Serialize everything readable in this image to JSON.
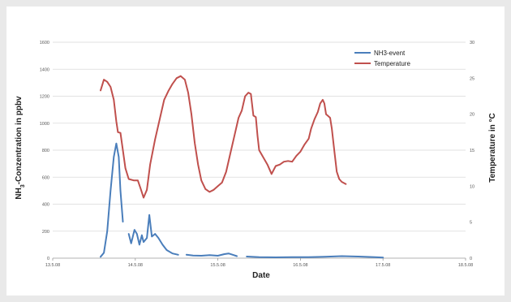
{
  "chart_data": {
    "type": "line",
    "xlabel": "Date",
    "ylabel_left": {
      "pre": "NH",
      "sub": "3",
      "post": "-Conzentration in ppbv"
    },
    "ylabel_right": "Temperature in °C",
    "x_ticks": [
      "13.5.08",
      "14.5.08",
      "15.5.08",
      "16.5.08",
      "17.5.08",
      "18.5.08"
    ],
    "x_range": [
      0,
      5
    ],
    "ylim_left": [
      0,
      1600
    ],
    "ylim_right": [
      0,
      30
    ],
    "y_ticks_left": [
      0,
      200,
      400,
      600,
      800,
      1000,
      1200,
      1400,
      1600
    ],
    "y_ticks_right": [
      0,
      5,
      10,
      15,
      20,
      25,
      30
    ],
    "grid": "horizontal",
    "legend_position": "top-right",
    "series": [
      {
        "name": "NH3-event",
        "axis": "left",
        "color": "#4a7ebb",
        "segments": [
          [
            [
              0.58,
              10
            ],
            [
              0.62,
              40
            ],
            [
              0.66,
              200
            ],
            [
              0.7,
              500
            ],
            [
              0.74,
              750
            ],
            [
              0.77,
              850
            ],
            [
              0.8,
              750
            ],
            [
              0.82,
              500
            ],
            [
              0.85,
              270
            ]
          ],
          [
            [
              0.92,
              180
            ],
            [
              0.95,
              110
            ],
            [
              0.99,
              210
            ],
            [
              1.02,
              180
            ],
            [
              1.05,
              100
            ],
            [
              1.08,
              170
            ],
            [
              1.1,
              120
            ],
            [
              1.14,
              150
            ],
            [
              1.17,
              320
            ],
            [
              1.2,
              160
            ],
            [
              1.24,
              180
            ],
            [
              1.28,
              150
            ],
            [
              1.33,
              100
            ],
            [
              1.38,
              60
            ],
            [
              1.45,
              35
            ],
            [
              1.52,
              25
            ]
          ],
          [
            [
              1.62,
              25
            ],
            [
              1.7,
              20
            ],
            [
              1.8,
              18
            ],
            [
              1.9,
              22
            ],
            [
              2.0,
              18
            ],
            [
              2.08,
              30
            ],
            [
              2.13,
              35
            ],
            [
              2.18,
              25
            ],
            [
              2.23,
              15
            ]
          ],
          [
            [
              2.35,
              12
            ],
            [
              2.5,
              8
            ],
            [
              2.7,
              6
            ],
            [
              2.9,
              8
            ],
            [
              3.1,
              8
            ],
            [
              3.3,
              10
            ],
            [
              3.5,
              15
            ],
            [
              3.7,
              12
            ],
            [
              3.9,
              8
            ],
            [
              4.0,
              5
            ]
          ]
        ]
      },
      {
        "name": "Temperature",
        "axis": "right",
        "color": "#c0504d",
        "points": [
          [
            0.58,
            23.3
          ],
          [
            0.62,
            24.8
          ],
          [
            0.66,
            24.5
          ],
          [
            0.7,
            23.8
          ],
          [
            0.74,
            22.0
          ],
          [
            0.77,
            19.0
          ],
          [
            0.79,
            17.5
          ],
          [
            0.82,
            17.4
          ],
          [
            0.85,
            15.0
          ],
          [
            0.88,
            12.5
          ],
          [
            0.92,
            11.0
          ],
          [
            0.98,
            10.8
          ],
          [
            1.03,
            10.8
          ],
          [
            1.07,
            9.5
          ],
          [
            1.1,
            8.4
          ],
          [
            1.14,
            9.5
          ],
          [
            1.18,
            13.0
          ],
          [
            1.24,
            16.5
          ],
          [
            1.3,
            19.5
          ],
          [
            1.35,
            22.0
          ],
          [
            1.4,
            23.2
          ],
          [
            1.45,
            24.2
          ],
          [
            1.5,
            25.0
          ],
          [
            1.55,
            25.3
          ],
          [
            1.6,
            24.8
          ],
          [
            1.64,
            23.0
          ],
          [
            1.68,
            20.0
          ],
          [
            1.72,
            16.0
          ],
          [
            1.76,
            13.0
          ],
          [
            1.8,
            10.8
          ],
          [
            1.85,
            9.6
          ],
          [
            1.9,
            9.2
          ],
          [
            1.95,
            9.5
          ],
          [
            2.0,
            10.0
          ],
          [
            2.05,
            10.5
          ],
          [
            2.1,
            12.0
          ],
          [
            2.15,
            14.5
          ],
          [
            2.2,
            17.0
          ],
          [
            2.25,
            19.5
          ],
          [
            2.29,
            20.5
          ],
          [
            2.33,
            22.5
          ],
          [
            2.37,
            23.0
          ],
          [
            2.4,
            22.8
          ],
          [
            2.43,
            19.8
          ],
          [
            2.46,
            19.6
          ],
          [
            2.48,
            17.0
          ],
          [
            2.5,
            15.0
          ],
          [
            2.55,
            14.0
          ],
          [
            2.6,
            13.0
          ],
          [
            2.65,
            11.7
          ],
          [
            2.7,
            12.8
          ],
          [
            2.75,
            13.0
          ],
          [
            2.8,
            13.4
          ],
          [
            2.85,
            13.5
          ],
          [
            2.9,
            13.4
          ],
          [
            2.95,
            14.2
          ],
          [
            3.0,
            14.8
          ],
          [
            3.05,
            15.8
          ],
          [
            3.1,
            16.6
          ],
          [
            3.13,
            18.0
          ],
          [
            3.17,
            19.3
          ],
          [
            3.21,
            20.3
          ],
          [
            3.24,
            21.5
          ],
          [
            3.27,
            22.0
          ],
          [
            3.29,
            21.5
          ],
          [
            3.31,
            20.0
          ],
          [
            3.33,
            19.8
          ],
          [
            3.36,
            19.5
          ],
          [
            3.38,
            18.0
          ],
          [
            3.41,
            15.0
          ],
          [
            3.44,
            12.0
          ],
          [
            3.47,
            11.0
          ],
          [
            3.5,
            10.6
          ],
          [
            3.55,
            10.3
          ]
        ]
      }
    ]
  }
}
